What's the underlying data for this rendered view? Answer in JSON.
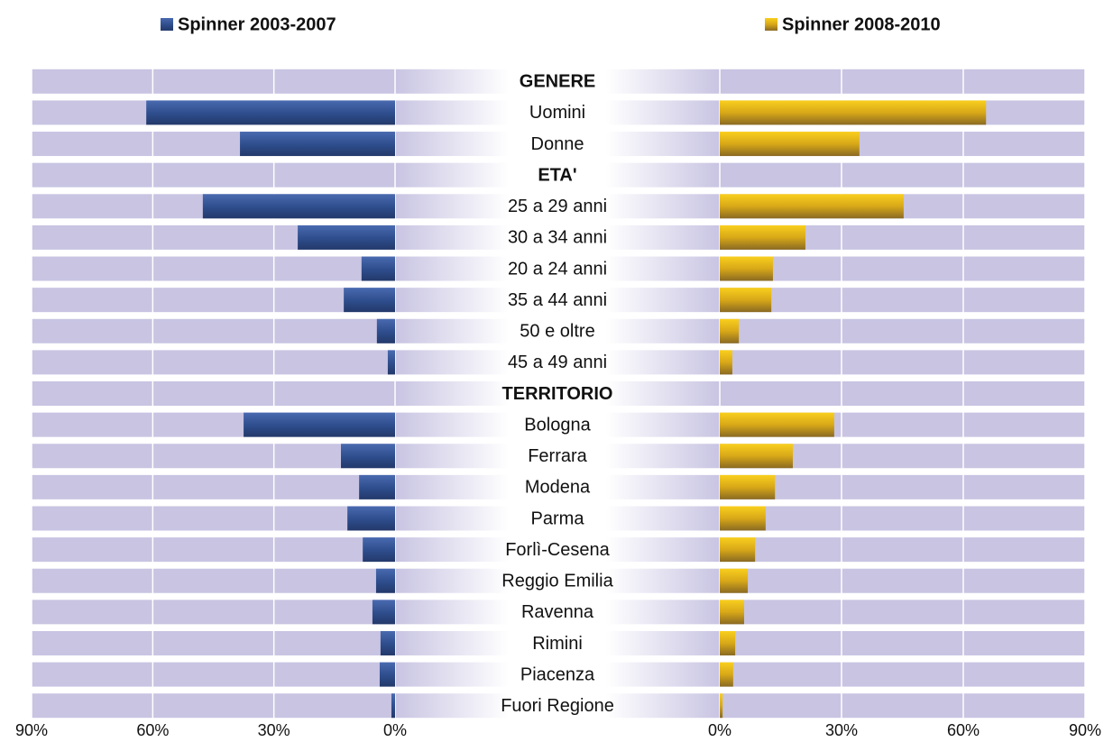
{
  "chart_data": {
    "type": "butterfly-bar",
    "categories": [
      "GENERE",
      "Uomini",
      "Donne",
      "ETA'",
      "25 a 29 anni",
      "30 a 34 anni",
      "20 a 24 anni",
      "35 a 44 anni",
      "50 e oltre",
      "45 a 49 anni",
      "TERRITORIO",
      "Bologna",
      "Ferrara",
      "Modena",
      "Parma",
      "Forlì-Cesena",
      "Reggio Emilia",
      "Ravenna",
      "Rimini",
      "Piacenza",
      "Fuori Regione"
    ],
    "series": [
      {
        "name": "Spinner 2003-2007",
        "color": "#2f4f8f",
        "side": "left",
        "values": [
          null,
          61.6,
          38.4,
          null,
          47.6,
          24.1,
          8.3,
          12.7,
          4.5,
          1.8,
          null,
          37.5,
          13.4,
          8.9,
          11.8,
          8.0,
          4.7,
          5.6,
          3.6,
          3.8,
          0.9
        ]
      },
      {
        "name": "Spinner 2008-2010",
        "color": "#e8b817",
        "side": "right",
        "values": [
          null,
          65.6,
          34.4,
          null,
          45.3,
          21.1,
          13.1,
          12.7,
          4.7,
          3.1,
          null,
          28.2,
          18.0,
          13.6,
          11.3,
          8.7,
          6.9,
          6.0,
          3.8,
          3.3,
          0.7
        ]
      }
    ],
    "xlim": [
      0,
      90
    ],
    "xticks": [
      {
        "value": 0,
        "label": "0%"
      },
      {
        "value": 30,
        "label": "30%"
      },
      {
        "value": 60,
        "label": "60%"
      },
      {
        "value": 90,
        "label": "90%"
      }
    ],
    "grid": true
  }
}
